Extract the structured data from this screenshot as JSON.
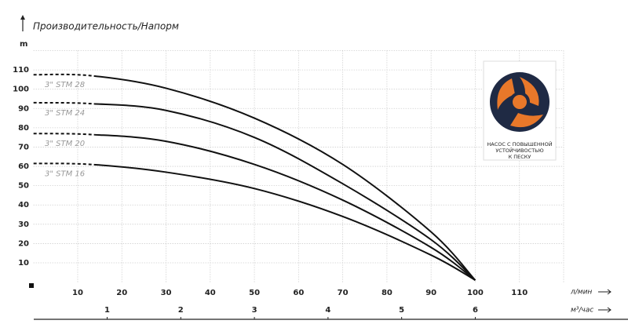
{
  "chart_data": {
    "type": "line",
    "title": "Производительность/Напорм",
    "y_label": "m",
    "x_label": "л/мин",
    "x2_label": "м³/час",
    "x": [
      0,
      13,
      30,
      50,
      70,
      90,
      100
    ],
    "series": [
      {
        "name": "3\" STM 28",
        "color": "#111111",
        "values": [
          107.5,
          107,
          100.5,
          85,
          61,
          26,
          1
        ]
      },
      {
        "name": "3\" STM 24",
        "color": "#111111",
        "values": [
          93,
          92.5,
          89,
          75,
          51,
          22,
          1
        ]
      },
      {
        "name": "3\" STM 20",
        "color": "#111111",
        "values": [
          77,
          76.5,
          73,
          61,
          42.5,
          18,
          1
        ]
      },
      {
        "name": "3\" STM 16",
        "color": "#111111",
        "values": [
          61.5,
          61,
          57,
          48.5,
          34,
          14,
          1
        ]
      }
    ],
    "dashed_below_x": 13,
    "xlim": [
      0,
      120
    ],
    "xticks": [
      10,
      20,
      30,
      40,
      50,
      60,
      70,
      80,
      90,
      100,
      110
    ],
    "x2lim": [
      0,
      7.2
    ],
    "x2ticks": [
      1,
      2,
      3,
      4,
      5,
      6
    ],
    "ylim": [
      0,
      120
    ],
    "yticks": [
      10,
      20,
      30,
      40,
      50,
      60,
      70,
      80,
      90,
      100,
      110
    ],
    "grid": true,
    "badge": [
      "НАСОС С ПОВЫШЕННОЙ",
      "УСТОЙЧИВОСТЬЮ",
      "К ПЕСКУ"
    ]
  }
}
